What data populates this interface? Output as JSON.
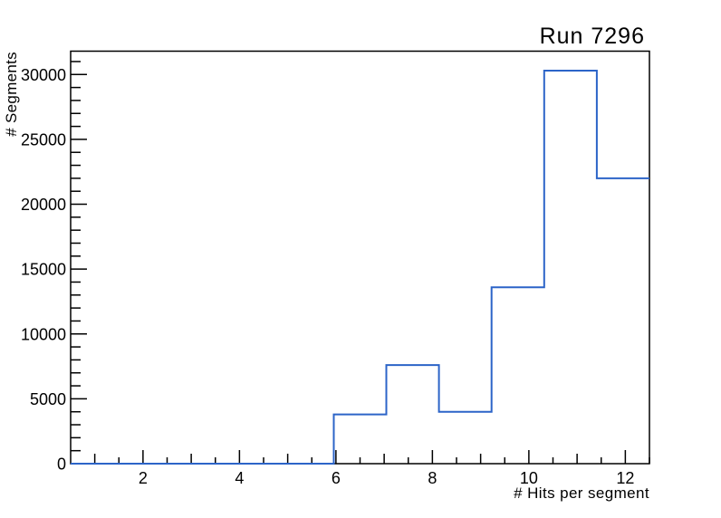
{
  "chart_data": {
    "type": "histogram",
    "title": "Run 7296",
    "xlabel": "# Hits per segment",
    "ylabel": "# Segments",
    "xlim": [
      0.5,
      12.5
    ],
    "ylim": [
      0,
      31800
    ],
    "grid": false,
    "legend": false,
    "background_color": "#ffffff",
    "frame_color": "#000000",
    "line_color": "#2c64c8",
    "bin_edges": [
      0.5,
      1.5909,
      2.6818,
      3.7727,
      4.8636,
      5.9545,
      7.0455,
      8.1364,
      9.2273,
      10.3182,
      11.4091,
      12.5
    ],
    "counts": [
      0,
      0,
      0,
      0,
      0,
      3800,
      7600,
      4000,
      13600,
      30300,
      22000
    ],
    "x_major_ticks": [
      2,
      4,
      6,
      8,
      10,
      12
    ],
    "x_medium_ticks": [
      1,
      3,
      5,
      7,
      9,
      11
    ],
    "x_minor_tick_step": 0.5,
    "y_major_ticks": [
      0,
      5000,
      10000,
      15000,
      20000,
      25000,
      30000
    ],
    "y_minor_tick_step": 1000
  }
}
